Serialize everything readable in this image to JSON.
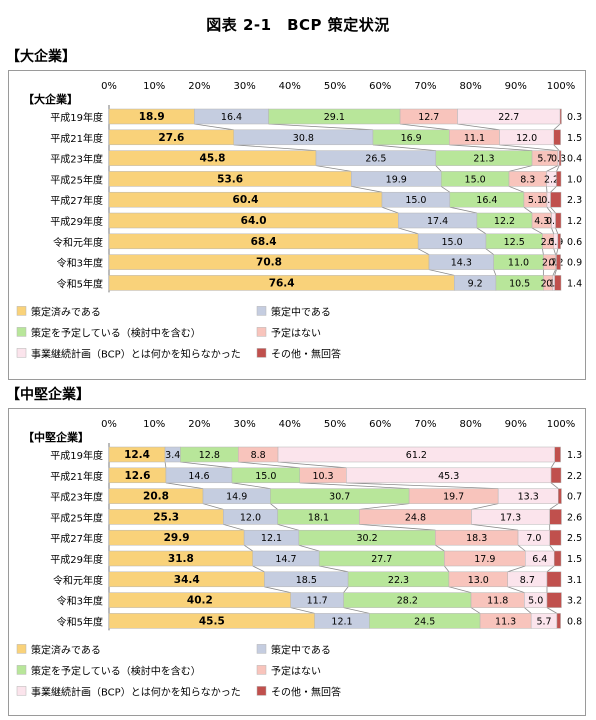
{
  "figure_title": "図表 2-1　BCP 策定状況",
  "colors": {
    "cat0": "#f9d27a",
    "cat1": "#c5cde0",
    "cat2": "#b8e69a",
    "cat3": "#f8c4bc",
    "cat4": "#fbe4ec",
    "cat5": "#c0504d"
  },
  "chart_data": [
    {
      "type": "bar",
      "heading": "【大企業】",
      "title": "【大企業】",
      "orientation": "horizontal-stacked-100",
      "x_ticks": [
        "0%",
        "10%",
        "20%",
        "30%",
        "40%",
        "50%",
        "60%",
        "70%",
        "80%",
        "90%",
        "100%"
      ],
      "xlim": [
        0,
        100
      ],
      "categories": [
        "平成19年度",
        "平成21年度",
        "平成23年度",
        "平成25年度",
        "平成27年度",
        "平成29年度",
        "令和元年度",
        "令和3年度",
        "令和5年度"
      ],
      "series": [
        {
          "name": "策定済みである",
          "values": [
            18.9,
            27.6,
            45.8,
            53.6,
            60.4,
            64.0,
            68.4,
            70.8,
            76.4
          ]
        },
        {
          "name": "策定中である",
          "values": [
            16.4,
            30.8,
            26.5,
            19.9,
            15.0,
            17.4,
            15.0,
            14.3,
            9.2
          ]
        },
        {
          "name": "策定を予定している（検討中を含む）",
          "values": [
            29.1,
            16.9,
            21.3,
            15.0,
            16.4,
            12.2,
            12.5,
            11.0,
            10.5
          ]
        },
        {
          "name": "予定はない",
          "values": [
            12.7,
            11.1,
            5.7,
            8.3,
            5.1,
            4.3,
            2.5,
            2.7,
            2.1
          ]
        },
        {
          "name": "事業継続計画（BCP）とは何かを知らなかった",
          "values": [
            22.7,
            12.0,
            0.3,
            2.2,
            0.8,
            0.9,
            0.9,
            0.2,
            0.4
          ]
        },
        {
          "name": "その他・無回答",
          "values": [
            0.3,
            1.5,
            0.4,
            1.0,
            2.3,
            1.2,
            0.6,
            0.9,
            1.4
          ]
        }
      ],
      "grid": false,
      "legend": "bottom"
    },
    {
      "type": "bar",
      "heading": "【中堅企業】",
      "title": "【中堅企業】",
      "orientation": "horizontal-stacked-100",
      "x_ticks": [
        "0%",
        "10%",
        "20%",
        "30%",
        "40%",
        "50%",
        "60%",
        "70%",
        "80%",
        "90%",
        "100%"
      ],
      "xlim": [
        0,
        100
      ],
      "categories": [
        "平成19年度",
        "平成21年度",
        "平成23年度",
        "平成25年度",
        "平成27年度",
        "平成29年度",
        "令和元年度",
        "令和3年度",
        "令和5年度"
      ],
      "series": [
        {
          "name": "策定済みである",
          "values": [
            12.4,
            12.6,
            20.8,
            25.3,
            29.9,
            31.8,
            34.4,
            40.2,
            45.5
          ]
        },
        {
          "name": "策定中である",
          "values": [
            3.4,
            14.6,
            14.9,
            12.0,
            12.1,
            14.7,
            18.5,
            11.7,
            12.1
          ]
        },
        {
          "name": "策定を予定している（検討中を含む）",
          "values": [
            12.8,
            15.0,
            30.7,
            18.1,
            30.2,
            27.7,
            22.3,
            28.2,
            24.5
          ]
        },
        {
          "name": "予定はない",
          "values": [
            8.8,
            10.3,
            19.7,
            24.8,
            18.3,
            17.9,
            13.0,
            11.8,
            11.3
          ]
        },
        {
          "name": "事業継続計画（BCP）とは何かを知らなかった",
          "values": [
            61.2,
            45.3,
            13.3,
            17.3,
            7.0,
            6.4,
            8.7,
            5.0,
            5.7
          ]
        },
        {
          "name": "その他・無回答",
          "values": [
            1.3,
            2.2,
            0.7,
            2.6,
            2.5,
            1.5,
            3.1,
            3.2,
            0.8
          ]
        }
      ],
      "grid": false,
      "legend": "bottom"
    }
  ]
}
